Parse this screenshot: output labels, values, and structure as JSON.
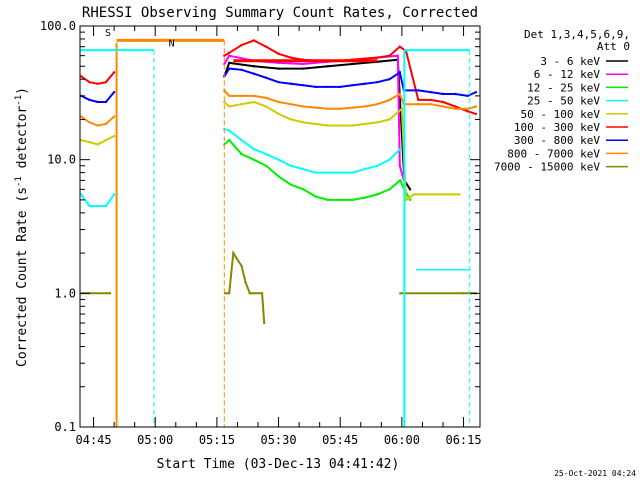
{
  "chart_data": {
    "type": "line",
    "title": "RHESSI Observing Summary Count Rates, Corrected",
    "xlabel": "Start Time (03-Dec-13 04:41:42)",
    "ylabel_pre": "Corrected Count Rate (s",
    "ylabel_sup": "-1",
    "ylabel_post": " detector",
    "ylabel_sup2": "-1",
    "ylabel_end": ")",
    "y_scale": "log",
    "ylim": [
      0.1,
      100
    ],
    "xlim": [
      281.7,
      379
    ],
    "x_unit": "minutes of day (UT)",
    "y_ticks": [
      {
        "v": 0.1,
        "label": "0.1"
      },
      {
        "v": 1,
        "label": "1.0"
      },
      {
        "v": 10,
        "label": "10.0"
      },
      {
        "v": 100,
        "label": "100.0"
      }
    ],
    "x_ticks": [
      {
        "v": 285,
        "label": "04:45"
      },
      {
        "v": 300,
        "label": "05:00"
      },
      {
        "v": 315,
        "label": "05:15"
      },
      {
        "v": 330,
        "label": "05:30"
      },
      {
        "v": 345,
        "label": "05:45"
      },
      {
        "v": 360,
        "label": "06:00"
      },
      {
        "v": 375,
        "label": "06:15"
      }
    ],
    "x_minor_step": 5,
    "legend_header": [
      "Det 1,3,4,5,6,9,",
      "Att 0"
    ],
    "legend_position": "right",
    "series": [
      {
        "name": "3 - 6 keV",
        "color": "#000000",
        "points": [
          [
            281.7,
            null
          ],
          [
            316.8,
            42
          ],
          [
            318,
            53
          ],
          [
            324,
            50
          ],
          [
            330,
            48
          ],
          [
            336,
            48
          ],
          [
            342,
            50
          ],
          [
            348,
            52
          ],
          [
            354,
            54
          ],
          [
            359,
            56
          ],
          [
            360.6,
            7
          ],
          [
            362,
            6
          ],
          [
            363,
            null
          ]
        ]
      },
      {
        "name": "6 - 12 keV",
        "color": "#ff00ff",
        "points": [
          [
            281.7,
            null
          ],
          [
            316.8,
            52
          ],
          [
            318,
            60
          ],
          [
            324,
            55
          ],
          [
            330,
            53
          ],
          [
            336,
            52
          ],
          [
            342,
            54
          ],
          [
            348,
            56
          ],
          [
            354,
            58
          ],
          [
            359,
            60
          ],
          [
            359.5,
            9
          ],
          [
            360.5,
            7
          ],
          [
            361,
            null
          ]
        ]
      },
      {
        "name": "12 - 25 keV",
        "color": "#00ee00",
        "points": [
          [
            316.8,
            13
          ],
          [
            318,
            14
          ],
          [
            321,
            11
          ],
          [
            324,
            10
          ],
          [
            327,
            9
          ],
          [
            330,
            7.5
          ],
          [
            333,
            6.5
          ],
          [
            336,
            6
          ],
          [
            339,
            5.3
          ],
          [
            342,
            5
          ],
          [
            345,
            5
          ],
          [
            348,
            5
          ],
          [
            351,
            5.2
          ],
          [
            354,
            5.5
          ],
          [
            357,
            6
          ],
          [
            359.6,
            7
          ],
          [
            360.6,
            6
          ],
          [
            362,
            5
          ],
          [
            363,
            null
          ]
        ]
      },
      {
        "name": "25 - 50 keV",
        "color": "#00ffff",
        "points": [
          [
            282,
            5.5
          ],
          [
            284,
            4.5
          ],
          [
            286,
            4.5
          ],
          [
            288,
            4.5
          ],
          [
            290,
            5.5
          ],
          [
            290.6,
            null
          ],
          [
            316.8,
            17
          ],
          [
            318,
            16.5
          ],
          [
            321,
            14
          ],
          [
            324,
            12
          ],
          [
            327,
            11
          ],
          [
            330,
            10
          ],
          [
            333,
            9
          ],
          [
            336,
            8.5
          ],
          [
            339,
            8
          ],
          [
            342,
            8
          ],
          [
            345,
            8
          ],
          [
            348,
            8
          ],
          [
            351,
            8.5
          ],
          [
            354,
            9
          ],
          [
            357,
            10
          ],
          [
            359.6,
            12
          ],
          [
            360,
            null
          ]
        ]
      },
      {
        "name": "50 - 100 keV",
        "color": "#cccc00",
        "points": [
          [
            282,
            14
          ],
          [
            284,
            13.5
          ],
          [
            286,
            13
          ],
          [
            288,
            14
          ],
          [
            290,
            15
          ],
          [
            290.6,
            null
          ],
          [
            316.8,
            27
          ],
          [
            318,
            25
          ],
          [
            321,
            26
          ],
          [
            324,
            27
          ],
          [
            327,
            25
          ],
          [
            330,
            22
          ],
          [
            333,
            20
          ],
          [
            336,
            19
          ],
          [
            339,
            18.5
          ],
          [
            342,
            18
          ],
          [
            345,
            18
          ],
          [
            348,
            18
          ],
          [
            351,
            18.5
          ],
          [
            354,
            19
          ],
          [
            357,
            20
          ],
          [
            360,
            24
          ],
          [
            361,
            5
          ],
          [
            363,
            5.5
          ],
          [
            366,
            5.5
          ],
          [
            369,
            5.5
          ],
          [
            372,
            5.5
          ],
          [
            374,
            5.5
          ],
          [
            375,
            null
          ]
        ]
      },
      {
        "name": "100 - 300 keV",
        "color": "#ff0000",
        "points": [
          [
            282,
            42
          ],
          [
            284,
            38
          ],
          [
            286,
            37
          ],
          [
            288,
            38
          ],
          [
            290,
            45
          ],
          [
            290.6,
            null
          ],
          [
            316.8,
            60
          ],
          [
            318,
            63
          ],
          [
            321,
            72
          ],
          [
            324,
            78
          ],
          [
            327,
            70
          ],
          [
            330,
            62
          ],
          [
            333,
            58
          ],
          [
            336,
            56
          ],
          [
            339,
            55
          ],
          [
            342,
            55
          ],
          [
            345,
            55
          ],
          [
            348,
            56
          ],
          [
            351,
            57
          ],
          [
            354,
            58
          ],
          [
            357,
            60
          ],
          [
            359.5,
            70
          ],
          [
            361,
            65
          ],
          [
            364,
            28
          ],
          [
            367,
            28
          ],
          [
            370,
            27
          ],
          [
            373,
            25
          ],
          [
            376,
            23
          ],
          [
            378,
            22
          ]
        ]
      },
      {
        "name": "300 - 800 keV",
        "color": "#0000ff",
        "points": [
          [
            282,
            30
          ],
          [
            284,
            28
          ],
          [
            286,
            27
          ],
          [
            288,
            27
          ],
          [
            290,
            32
          ],
          [
            290.6,
            null
          ],
          [
            316.8,
            42
          ],
          [
            318,
            48
          ],
          [
            321,
            47
          ],
          [
            324,
            44
          ],
          [
            327,
            41
          ],
          [
            330,
            38
          ],
          [
            333,
            37
          ],
          [
            336,
            36
          ],
          [
            339,
            35
          ],
          [
            342,
            35
          ],
          [
            345,
            35
          ],
          [
            348,
            36
          ],
          [
            351,
            37
          ],
          [
            354,
            38
          ],
          [
            357,
            40
          ],
          [
            359.5,
            45
          ],
          [
            360.5,
            33
          ],
          [
            364,
            33
          ],
          [
            367,
            32
          ],
          [
            370,
            31
          ],
          [
            373,
            31
          ],
          [
            376,
            30
          ],
          [
            378,
            32
          ]
        ]
      },
      {
        "name": "800 - 7000 keV",
        "color": "#ff8800",
        "points": [
          [
            282,
            21
          ],
          [
            284,
            19
          ],
          [
            286,
            18
          ],
          [
            288,
            18.5
          ],
          [
            290,
            21
          ],
          [
            290.6,
            null
          ],
          [
            316.8,
            33
          ],
          [
            318,
            30
          ],
          [
            321,
            30
          ],
          [
            324,
            30
          ],
          [
            327,
            29
          ],
          [
            330,
            27
          ],
          [
            333,
            26
          ],
          [
            336,
            25
          ],
          [
            339,
            24.5
          ],
          [
            342,
            24
          ],
          [
            345,
            24
          ],
          [
            348,
            24.5
          ],
          [
            351,
            25
          ],
          [
            354,
            26
          ],
          [
            357,
            28
          ],
          [
            359.5,
            31
          ],
          [
            360.5,
            26
          ],
          [
            364,
            26
          ],
          [
            367,
            26
          ],
          [
            370,
            25
          ],
          [
            373,
            24
          ],
          [
            376,
            24
          ],
          [
            378,
            25
          ]
        ]
      },
      {
        "name": "7000 - 15000 keV",
        "color": "#888800",
        "points": [
          [
            282,
            1
          ],
          [
            289,
            1
          ],
          [
            290.6,
            null
          ],
          [
            317,
            1
          ],
          [
            318,
            1
          ],
          [
            319,
            2
          ],
          [
            321,
            1.6
          ],
          [
            322,
            1.2
          ],
          [
            323,
            1
          ],
          [
            326,
            1
          ],
          [
            326.5,
            0.6
          ],
          [
            327,
            null
          ],
          [
            359.6,
            1
          ],
          [
            375,
            1
          ],
          [
            378,
            1
          ]
        ]
      }
    ],
    "annotations": [
      {
        "label": "S",
        "color": "#ff8800"
      },
      {
        "label": "N",
        "color": "#00ffff"
      }
    ],
    "footer_timestamp": "25-Oct-2021 04:24"
  }
}
